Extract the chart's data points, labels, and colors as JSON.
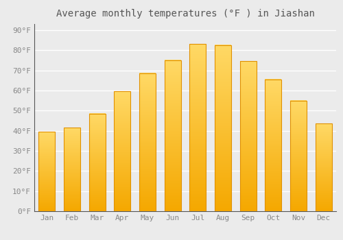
{
  "title": "Average monthly temperatures (°F ) in Jiashan",
  "months": [
    "Jan",
    "Feb",
    "Mar",
    "Apr",
    "May",
    "Jun",
    "Jul",
    "Aug",
    "Sep",
    "Oct",
    "Nov",
    "Dec"
  ],
  "values": [
    39.5,
    41.5,
    48.5,
    59.5,
    68.5,
    75.0,
    83.0,
    82.5,
    74.5,
    65.5,
    55.0,
    43.5
  ],
  "bar_color_bottom": "#F5A800",
  "bar_color_top": "#FFD966",
  "bar_edge_color": "#E09000",
  "ylim": [
    0,
    93
  ],
  "yticks": [
    0,
    10,
    20,
    30,
    40,
    50,
    60,
    70,
    80,
    90
  ],
  "ytick_labels": [
    "0°F",
    "10°F",
    "20°F",
    "30°F",
    "40°F",
    "50°F",
    "60°F",
    "70°F",
    "80°F",
    "90°F"
  ],
  "background_color": "#ebebeb",
  "grid_color": "#ffffff",
  "title_fontsize": 10,
  "tick_fontsize": 8,
  "font_family": "monospace"
}
